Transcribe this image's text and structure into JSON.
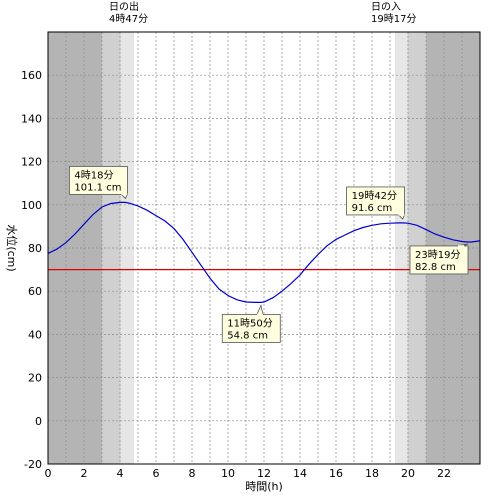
{
  "chart_data": {
    "type": "line",
    "xlabel": "時間(h)",
    "ylabel": "水位(cm)",
    "xlim": [
      0,
      24
    ],
    "ylim": [
      -20,
      180
    ],
    "x_ticks": [
      0,
      2,
      4,
      6,
      8,
      10,
      12,
      14,
      16,
      18,
      20,
      22
    ],
    "y_ticks": [
      -20,
      0,
      20,
      40,
      60,
      80,
      100,
      120,
      140,
      160
    ],
    "grid": true,
    "reference_line": {
      "y": 70,
      "color": "#e00000"
    },
    "series": [
      {
        "color": "#0000cc",
        "x": [
          0,
          0.5,
          1,
          1.5,
          2,
          2.5,
          3,
          3.5,
          4,
          4.3,
          4.5,
          5,
          5.5,
          6,
          6.5,
          7,
          7.5,
          8,
          8.5,
          9,
          9.5,
          10,
          10.5,
          11,
          11.5,
          11.83,
          12,
          12.5,
          13,
          13.5,
          14,
          14.5,
          15,
          15.5,
          16,
          16.5,
          17,
          17.5,
          18,
          18.5,
          19,
          19.5,
          19.7,
          20,
          20.5,
          21,
          21.5,
          22,
          22.5,
          23,
          23.32,
          23.5,
          24
        ],
        "y": [
          77.5,
          79.5,
          82.5,
          86.5,
          91,
          95.5,
          99,
          100.6,
          101.1,
          101.1,
          100.8,
          99.5,
          97.5,
          95,
          92.5,
          89,
          84,
          78,
          72,
          66,
          61,
          58,
          56,
          55,
          54.8,
          54.8,
          55,
          57,
          60,
          63.5,
          67.5,
          72.5,
          77,
          81,
          84,
          86,
          88,
          89.5,
          90.5,
          91.2,
          91.5,
          91.6,
          91.6,
          91.5,
          90.5,
          88.5,
          86.5,
          85,
          83.8,
          83,
          82.8,
          82.8,
          83.3
        ]
      }
    ],
    "callouts": [
      {
        "x": 4.3,
        "y": 101.1,
        "time": "4時18分",
        "value": "101.1 cm"
      },
      {
        "x": 11.83,
        "y": 54.8,
        "time": "11時50分",
        "value": "54.8 cm"
      },
      {
        "x": 19.7,
        "y": 91.6,
        "time": "19時42分",
        "value": "91.6 cm"
      },
      {
        "x": 23.32,
        "y": 82.8,
        "time": "23時19分",
        "value": "82.8 cm"
      }
    ],
    "sunrise": {
      "label": "日の出",
      "time": "4時47分",
      "hour": 4.78
    },
    "sunset": {
      "label": "日の入",
      "time": "19時17分",
      "hour": 19.28
    },
    "colors": {
      "night": "#b4b4b4",
      "twilight_dark": "#d0d0d0",
      "twilight_light": "#e6e6e6",
      "day": "#ffffff",
      "callout_bg": "#ffffe0"
    }
  }
}
